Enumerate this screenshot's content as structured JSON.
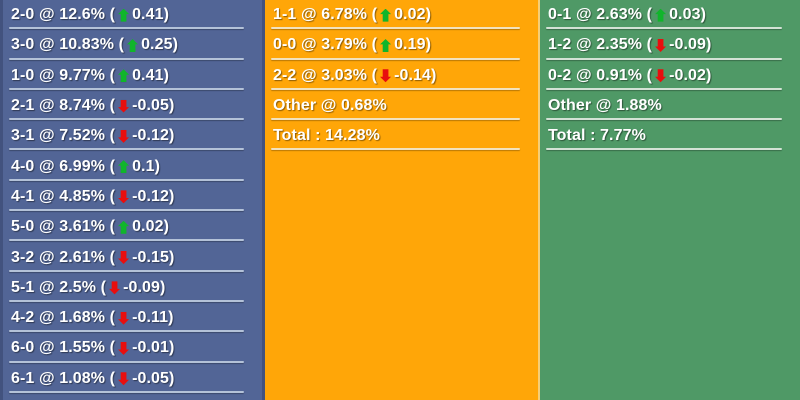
{
  "panel": {
    "colors": {
      "up_arrow": "#10B52B",
      "down_arrow": "#E80E0E",
      "text": "#FFFFFF"
    },
    "columns": [
      {
        "id": "home-scores",
        "bg": "#526596",
        "separator": "#B4C2D8",
        "edge": "#42527E",
        "rows": [
          {
            "type": "score",
            "score": "2-0",
            "pct": "12.6%",
            "change": "0.41",
            "dir": "up"
          },
          {
            "type": "score",
            "score": "3-0",
            "pct": "10.83%",
            "change": "0.25",
            "dir": "up"
          },
          {
            "type": "score",
            "score": "1-0",
            "pct": "9.77%",
            "change": "0.41",
            "dir": "up"
          },
          {
            "type": "score",
            "score": "2-1",
            "pct": "8.74%",
            "change": "-0.05",
            "dir": "down"
          },
          {
            "type": "score",
            "score": "3-1",
            "pct": "7.52%",
            "change": "-0.12",
            "dir": "down"
          },
          {
            "type": "score",
            "score": "4-0",
            "pct": "6.99%",
            "change": "0.1",
            "dir": "up"
          },
          {
            "type": "score",
            "score": "4-1",
            "pct": "4.85%",
            "change": "-0.12",
            "dir": "down"
          },
          {
            "type": "score",
            "score": "5-0",
            "pct": "3.61%",
            "change": "0.02",
            "dir": "up"
          },
          {
            "type": "score",
            "score": "3-2",
            "pct": "2.61%",
            "change": "-0.15",
            "dir": "down"
          },
          {
            "type": "score",
            "score": "5-1",
            "pct": "2.5%",
            "change": "-0.09",
            "dir": "down"
          },
          {
            "type": "score",
            "score": "4-2",
            "pct": "1.68%",
            "change": "-0.11",
            "dir": "down"
          },
          {
            "type": "score",
            "score": "6-0",
            "pct": "1.55%",
            "change": "-0.01",
            "dir": "down"
          },
          {
            "type": "score",
            "score": "6-1",
            "pct": "1.08%",
            "change": "-0.05",
            "dir": "down"
          }
        ]
      },
      {
        "id": "draw-scores",
        "bg": "#FFA608",
        "separator": "#F2E2BE",
        "edge": "#F6CE77",
        "rows": [
          {
            "type": "score",
            "score": "1-1",
            "pct": "6.78%",
            "change": "0.02",
            "dir": "up"
          },
          {
            "type": "score",
            "score": "0-0",
            "pct": "3.79%",
            "change": "0.19",
            "dir": "up"
          },
          {
            "type": "score",
            "score": "2-2",
            "pct": "3.03%",
            "change": "-0.14",
            "dir": "down"
          },
          {
            "type": "summary",
            "text": "Other @ 0.68%"
          },
          {
            "type": "summary",
            "text": "Total : 14.28%"
          }
        ]
      },
      {
        "id": "away-scores",
        "bg": "#4F9966",
        "separator": "#D3E2D5",
        "edge": "",
        "rows": [
          {
            "type": "score",
            "score": "0-1",
            "pct": "2.63%",
            "change": "0.03",
            "dir": "up"
          },
          {
            "type": "score",
            "score": "1-2",
            "pct": "2.35%",
            "change": "-0.09",
            "dir": "down"
          },
          {
            "type": "score",
            "score": "0-2",
            "pct": "0.91%",
            "change": "-0.02",
            "dir": "down"
          },
          {
            "type": "summary",
            "text": "Other @ 1.88%"
          },
          {
            "type": "summary",
            "text": "Total : 7.77%"
          }
        ]
      }
    ]
  }
}
